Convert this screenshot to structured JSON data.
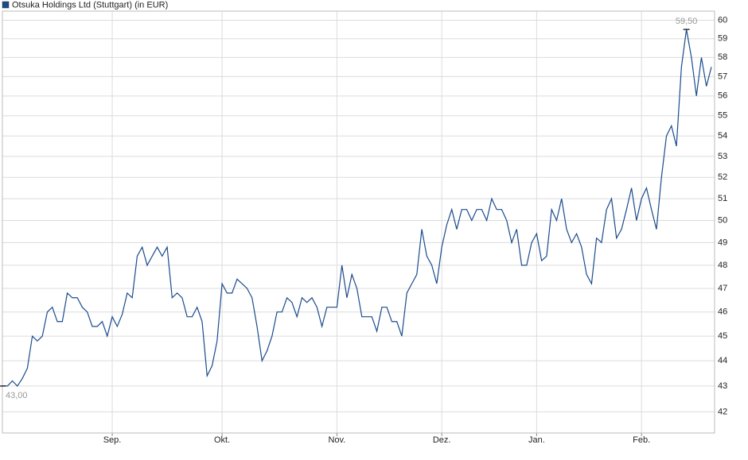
{
  "chart_data": {
    "type": "line",
    "categories": [
      null,
      null,
      null,
      null,
      null,
      null,
      null,
      null,
      null,
      null,
      null,
      null,
      null,
      null,
      null,
      null,
      null,
      null,
      null,
      null,
      null,
      null,
      "Sep.",
      null,
      null,
      null,
      null,
      null,
      null,
      null,
      null,
      null,
      null,
      null,
      null,
      null,
      null,
      null,
      null,
      null,
      null,
      null,
      null,
      null,
      "Okt.",
      null,
      null,
      null,
      null,
      null,
      null,
      null,
      null,
      null,
      null,
      null,
      null,
      null,
      null,
      null,
      null,
      null,
      null,
      null,
      null,
      null,
      null,
      "Nov.",
      null,
      null,
      null,
      null,
      null,
      null,
      null,
      null,
      null,
      null,
      null,
      null,
      null,
      null,
      null,
      null,
      null,
      null,
      null,
      null,
      "Dez.",
      null,
      null,
      null,
      null,
      null,
      null,
      null,
      null,
      null,
      null,
      null,
      null,
      null,
      null,
      null,
      null,
      null,
      null,
      "Jan.",
      null,
      null,
      null,
      null,
      null,
      null,
      null,
      null,
      null,
      null,
      null,
      null,
      null,
      null,
      null,
      null,
      null,
      null,
      null,
      null,
      "Feb.",
      null,
      null,
      null,
      null,
      null,
      null,
      null,
      null,
      null,
      null,
      null,
      null,
      null,
      null
    ],
    "series": [
      {
        "name": "Otsuka Holdings Ltd (Stuttgart) (in EUR)",
        "color": "#1a4b8c",
        "values": [
          43.0,
          43.0,
          43.2,
          43.0,
          43.3,
          43.7,
          45.0,
          44.8,
          45.0,
          46.0,
          46.2,
          45.6,
          45.6,
          46.8,
          46.6,
          46.6,
          46.2,
          46.0,
          45.4,
          45.4,
          45.6,
          45.0,
          45.8,
          45.4,
          45.9,
          46.8,
          46.6,
          48.4,
          48.8,
          48.0,
          48.4,
          48.8,
          48.4,
          48.8,
          46.6,
          46.8,
          46.6,
          45.8,
          45.8,
          46.2,
          45.6,
          43.4,
          43.8,
          44.8,
          47.2,
          46.8,
          46.8,
          47.4,
          47.2,
          47.0,
          46.6,
          45.4,
          44.0,
          44.4,
          45.0,
          46.0,
          46.0,
          46.6,
          46.4,
          45.8,
          46.6,
          46.4,
          46.6,
          46.2,
          45.4,
          46.2,
          46.2,
          46.2,
          48.0,
          46.6,
          47.6,
          47.0,
          45.8,
          45.8,
          45.8,
          45.2,
          46.2,
          46.2,
          45.6,
          45.6,
          45.0,
          46.8,
          47.2,
          47.6,
          49.6,
          48.4,
          48.0,
          47.2,
          48.8,
          49.8,
          50.5,
          49.6,
          50.5,
          50.5,
          50.0,
          50.5,
          50.5,
          50.0,
          51.0,
          50.5,
          50.5,
          50.0,
          49.0,
          49.6,
          48.0,
          48.0,
          49.0,
          49.4,
          48.2,
          48.4,
          50.5,
          50.0,
          51.0,
          49.6,
          49.0,
          49.4,
          48.8,
          47.6,
          47.2,
          49.2,
          49.0,
          50.5,
          51.0,
          49.2,
          49.6,
          50.5,
          51.5,
          50.0,
          51.0,
          51.5,
          50.5,
          49.6,
          52.0,
          54.0,
          54.5,
          53.5,
          57.5,
          59.5,
          58.0,
          56.0,
          58.0,
          56.5,
          57.5
        ],
        "value_labels": [
          "43,00",
          null,
          null,
          null,
          null,
          null,
          null,
          null,
          null,
          null,
          null,
          null,
          null,
          null,
          null,
          null,
          null,
          null,
          null,
          null,
          null,
          null,
          null,
          null,
          null,
          null,
          null,
          null,
          null,
          null,
          null,
          null,
          null,
          null,
          null,
          null,
          null,
          null,
          null,
          null,
          null,
          null,
          null,
          null,
          null,
          null,
          null,
          null,
          null,
          null,
          null,
          null,
          null,
          null,
          null,
          null,
          null,
          null,
          null,
          null,
          null,
          null,
          null,
          null,
          null,
          null,
          null,
          null,
          null,
          null,
          null,
          null,
          null,
          null,
          null,
          null,
          null,
          null,
          null,
          null,
          null,
          null,
          null,
          null,
          null,
          null,
          null,
          null,
          null,
          null,
          null,
          null,
          null,
          null,
          null,
          null,
          null,
          null,
          null,
          null,
          null,
          null,
          null,
          null,
          null,
          null,
          null,
          null,
          null,
          null,
          null,
          null,
          null,
          null,
          null,
          null,
          null,
          null,
          null,
          null,
          null,
          null,
          null,
          null,
          null,
          null,
          null,
          null,
          null,
          null,
          null,
          null,
          null,
          null,
          null,
          null,
          null,
          "59,50",
          null,
          null,
          null,
          null,
          null
        ]
      }
    ],
    "ylim": [
      41.2,
      60.5
    ],
    "yticks": [
      42,
      43,
      44,
      45,
      46,
      47,
      48,
      49,
      50,
      51,
      52,
      53,
      54,
      55,
      56,
      57,
      58,
      59,
      60
    ],
    "log_scale": true,
    "grid": true,
    "legend": "top-left"
  }
}
